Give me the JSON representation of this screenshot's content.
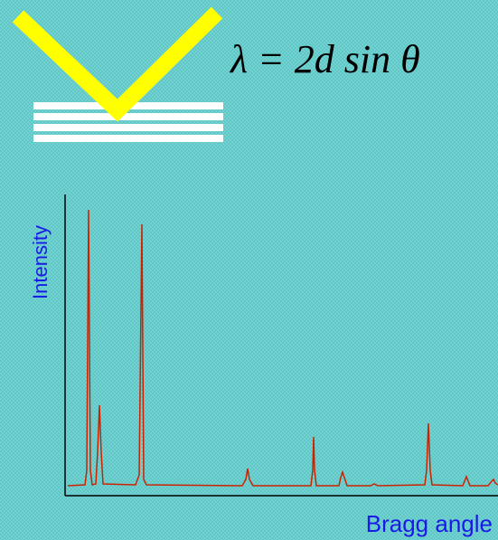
{
  "formula": "λ = 2d sin θ",
  "y_axis_label": "Intensity",
  "x_axis_label": "Bragg angle"
}
